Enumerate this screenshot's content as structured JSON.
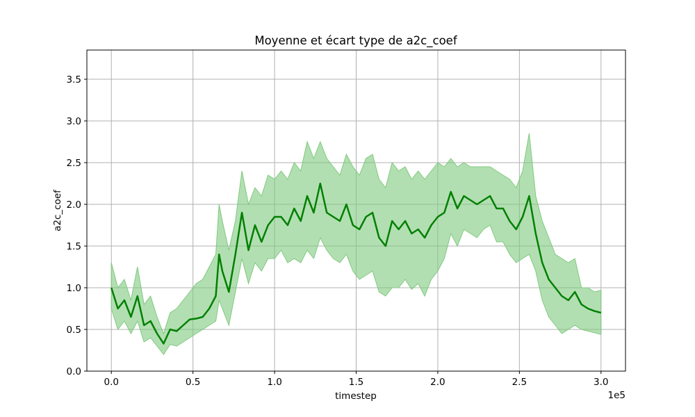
{
  "chart_data": {
    "type": "area",
    "title": "Moyenne et écart type de a2c_coef",
    "xlabel": "timestep",
    "ylabel": "a2c_coef",
    "x_offset_label": "1e5",
    "xlim": [
      -15000,
      315000
    ],
    "ylim": [
      0,
      3.85
    ],
    "x_ticks": [
      0,
      50000,
      100000,
      150000,
      200000,
      250000,
      300000
    ],
    "x_tick_labels": [
      "0.0",
      "0.5",
      "1.0",
      "1.5",
      "2.0",
      "2.5",
      "3.0"
    ],
    "y_ticks": [
      0,
      0.5,
      1.0,
      1.5,
      2.0,
      2.5,
      3.0,
      3.5
    ],
    "y_tick_labels": [
      "0.0",
      "0.5",
      "1.0",
      "1.5",
      "2.0",
      "2.5",
      "3.0",
      "3.5"
    ],
    "grid": true,
    "colors": {
      "line": "#008000",
      "band": "#7fc97f",
      "grid": "#b0b0b0"
    },
    "series": [
      {
        "x": [
          0,
          4000,
          8000,
          12000,
          16000,
          20000,
          24000,
          28000,
          32000,
          36000,
          40000,
          44000,
          48000,
          52000,
          56000,
          60000,
          64000,
          66000,
          68000,
          72000,
          76000,
          80000,
          84000,
          88000,
          92000,
          96000,
          100000,
          104000,
          108000,
          112000,
          116000,
          120000,
          124000,
          128000,
          132000,
          136000,
          140000,
          144000,
          148000,
          152000,
          156000,
          160000,
          164000,
          168000,
          172000,
          176000,
          180000,
          184000,
          188000,
          192000,
          196000,
          200000,
          204000,
          208000,
          212000,
          216000,
          220000,
          224000,
          228000,
          232000,
          236000,
          240000,
          244000,
          248000,
          252000,
          256000,
          260000,
          264000,
          268000,
          272000,
          276000,
          280000,
          284000,
          288000,
          292000,
          296000,
          300000
        ],
        "mean": [
          1.0,
          0.75,
          0.85,
          0.65,
          0.9,
          0.55,
          0.6,
          0.45,
          0.33,
          0.5,
          0.48,
          0.55,
          0.62,
          0.63,
          0.65,
          0.75,
          0.9,
          1.4,
          1.2,
          0.95,
          1.4,
          1.9,
          1.45,
          1.75,
          1.55,
          1.75,
          1.85,
          1.85,
          1.75,
          1.95,
          1.8,
          2.1,
          1.9,
          2.25,
          1.9,
          1.85,
          1.8,
          2.0,
          1.75,
          1.7,
          1.85,
          1.9,
          1.6,
          1.5,
          1.8,
          1.7,
          1.8,
          1.65,
          1.7,
          1.6,
          1.75,
          1.85,
          1.9,
          2.15,
          1.95,
          2.1,
          2.05,
          2.0,
          2.05,
          2.1,
          1.95,
          1.95,
          1.8,
          1.7,
          1.85,
          2.1,
          1.65,
          1.3,
          1.1,
          1.0,
          0.9,
          0.85,
          0.95,
          0.8,
          0.75,
          0.72,
          0.7
        ],
        "upper": [
          1.3,
          1.0,
          1.1,
          0.85,
          1.25,
          0.8,
          0.9,
          0.65,
          0.45,
          0.7,
          0.75,
          0.85,
          0.95,
          1.05,
          1.1,
          1.25,
          1.4,
          2.0,
          1.8,
          1.45,
          1.8,
          2.4,
          2.0,
          2.2,
          2.1,
          2.35,
          2.3,
          2.4,
          2.3,
          2.5,
          2.4,
          2.75,
          2.55,
          2.75,
          2.55,
          2.45,
          2.35,
          2.6,
          2.45,
          2.35,
          2.55,
          2.6,
          2.3,
          2.2,
          2.5,
          2.4,
          2.45,
          2.3,
          2.4,
          2.3,
          2.4,
          2.5,
          2.45,
          2.55,
          2.45,
          2.5,
          2.45,
          2.45,
          2.45,
          2.45,
          2.4,
          2.35,
          2.3,
          2.2,
          2.4,
          2.85,
          2.1,
          1.8,
          1.6,
          1.4,
          1.35,
          1.3,
          1.35,
          1.0,
          1.0,
          0.95,
          0.97
        ],
        "lower": [
          0.75,
          0.5,
          0.6,
          0.45,
          0.6,
          0.35,
          0.4,
          0.3,
          0.2,
          0.32,
          0.3,
          0.35,
          0.4,
          0.45,
          0.5,
          0.55,
          0.6,
          0.85,
          0.75,
          0.55,
          0.95,
          1.35,
          1.05,
          1.3,
          1.2,
          1.35,
          1.35,
          1.45,
          1.3,
          1.35,
          1.3,
          1.45,
          1.35,
          1.6,
          1.45,
          1.35,
          1.3,
          1.4,
          1.2,
          1.1,
          1.15,
          1.2,
          0.95,
          0.9,
          1.0,
          1.0,
          1.1,
          0.98,
          1.05,
          0.9,
          1.1,
          1.2,
          1.35,
          1.65,
          1.5,
          1.7,
          1.65,
          1.6,
          1.7,
          1.75,
          1.55,
          1.55,
          1.4,
          1.3,
          1.35,
          1.4,
          1.2,
          0.85,
          0.65,
          0.55,
          0.45,
          0.5,
          0.55,
          0.5,
          0.48,
          0.46,
          0.44
        ]
      }
    ]
  }
}
